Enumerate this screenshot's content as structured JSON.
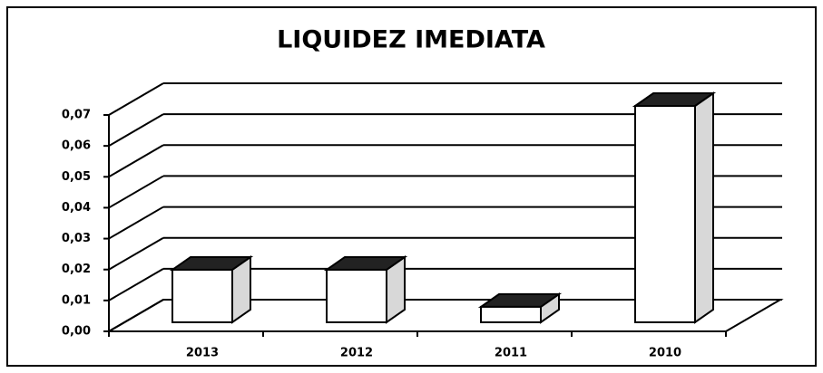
{
  "chart_data": {
    "type": "bar3d",
    "title": "LIQUIDEZ IMEDIATA",
    "categories": [
      "2013",
      "2012",
      "2011",
      "2010"
    ],
    "values": [
      0.017,
      0.017,
      0.005,
      0.07
    ],
    "color": "#ffffff",
    "ylim": [
      0,
      0.07
    ],
    "yticks": [
      {
        "value": 0,
        "label": "0,00"
      },
      {
        "value": 0.01,
        "label": "0,01"
      },
      {
        "value": 0.02,
        "label": "0,02"
      },
      {
        "value": 0.03,
        "label": "0,03"
      },
      {
        "value": 0.04,
        "label": "0,04"
      },
      {
        "value": 0.05,
        "label": "0,05"
      },
      {
        "value": 0.06,
        "label": "0,06"
      },
      {
        "value": 0.07,
        "label": "0,07"
      }
    ],
    "grid": true
  }
}
